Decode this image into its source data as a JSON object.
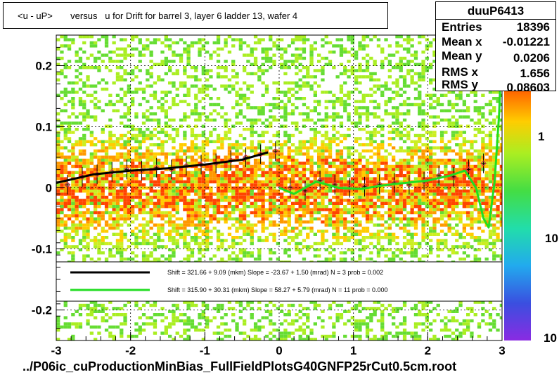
{
  "title": "<u - uP>       versus   u for Drift for barrel 3, layer 6 ladder 13, wafer 4",
  "stats": {
    "name": "duuP6413",
    "rows": [
      {
        "label": "Entries",
        "value": "18396"
      },
      {
        "label": "Mean x",
        "value": "-0.01221"
      },
      {
        "label": "Mean y",
        "value": "0.0206"
      },
      {
        "label": "RMS x",
        "value": "1.656"
      },
      {
        "label": "RMS y",
        "value": "0.08603"
      }
    ]
  },
  "footer": "../P06ic_cuProductionMinBias_FullFieldPlotsG40GNFP25rCut0.5cm.root",
  "legend": {
    "entries": [
      {
        "color": "#000000",
        "text": "Shift =   321.66 + 9.09 (mkm) Slope =   -23.67 + 1.50 (mrad)  N = 3 prob = 0.002"
      },
      {
        "color": "#22dd22",
        "text": "Shift =   315.90 + 30.31 (mkm) Slope =    58.27 + 5.79 (mrad)  N = 11 prob = 0.000"
      }
    ]
  },
  "colors": {
    "fit_black": "#000000",
    "fit_green": "#22dd22",
    "profile_marker": "#cc3344"
  },
  "chart_data": {
    "type": "heatmap",
    "xlim": [
      -3,
      3
    ],
    "ylim": [
      -0.25,
      0.25
    ],
    "x_ticks": [
      -3,
      -2,
      -1,
      0,
      1,
      2,
      3
    ],
    "y_ticks": [
      -0.2,
      -0.1,
      0,
      0.1,
      0.2
    ],
    "x_tick_labels": [
      "-3",
      "-2",
      "-1",
      "0",
      "1",
      "2",
      "3"
    ],
    "y_tick_labels": [
      "-0.2",
      "-0.1",
      "0",
      "0.1",
      "0.2"
    ],
    "z_scale": "log",
    "z_tick_labels": [
      "1",
      "10",
      "10"
    ],
    "grid": true,
    "profile": {
      "x": [
        -2.85,
        -2.65,
        -2.45,
        -2.25,
        -2.05,
        -1.85,
        -1.65,
        -1.45,
        -1.25,
        -1.05,
        -0.85,
        -0.65,
        -0.45,
        -0.25,
        -0.05,
        0.15,
        0.35,
        0.55,
        0.75,
        0.95,
        1.15,
        1.35,
        1.55,
        1.75,
        1.95,
        2.15,
        2.35,
        2.55,
        2.75
      ],
      "y": [
        0.005,
        0.018,
        0.022,
        0.026,
        0.03,
        0.028,
        0.033,
        0.03,
        0.036,
        0.038,
        0.04,
        0.045,
        0.05,
        0.055,
        0.06,
        0.0,
        -0.005,
        0.012,
        0.005,
        0.0,
        0.002,
        0.006,
        0.008,
        0.005,
        0.01,
        0.02,
        0.018,
        0.03,
        0.04
      ]
    },
    "fit_black": {
      "x": [
        -3.0,
        -2.5,
        -2.0,
        -1.5,
        -1.0,
        -0.5,
        -0.15
      ],
      "y": [
        0.008,
        0.022,
        0.028,
        0.032,
        0.038,
        0.046,
        0.058
      ]
    },
    "fit_green": {
      "x": [
        0.0,
        0.2,
        0.5,
        0.8,
        1.1,
        1.4,
        1.7,
        2.0,
        2.3,
        2.5,
        2.65,
        2.75,
        2.82,
        2.9,
        2.96,
        3.0
      ],
      "y": [
        0.0,
        -0.01,
        0.01,
        0.0,
        -0.002,
        0.004,
        0.008,
        0.012,
        0.02,
        0.028,
        0.0,
        -0.05,
        -0.065,
        0.01,
        0.12,
        0.24
      ]
    }
  }
}
